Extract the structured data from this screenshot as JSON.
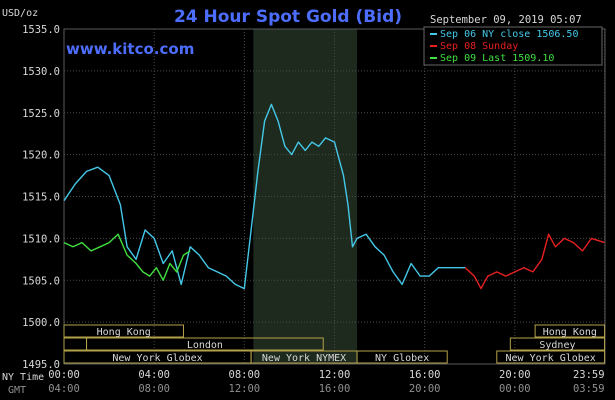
{
  "colors": {
    "background": "#000000",
    "title": "#4d6dff",
    "website": "#4d6dff",
    "axis_text": "#d8d8d8",
    "grid": "#4a4a4a",
    "session_shade": "#1e2a1e",
    "label_border": "#b4a24a",
    "label_text": "#d8d8d8"
  },
  "chart_data": {
    "type": "line",
    "title": "24 Hour Spot Gold (Bid)",
    "website": "www.kitco.com",
    "timestamp": "September 09, 2019 05:07",
    "ylabel": "USD/oz",
    "ylim": [
      1495.0,
      1535.0
    ],
    "y_ticks": [
      "1495.0",
      "1500.0",
      "1505.0",
      "1510.0",
      "1515.0",
      "1520.0",
      "1525.0",
      "1530.0",
      "1535.0"
    ],
    "y_tick_values": [
      1495,
      1500,
      1505,
      1510,
      1515,
      1520,
      1525,
      1530,
      1535
    ],
    "xlim": [
      0,
      24
    ],
    "x_ticks_ny": [
      "00:00",
      "04:00",
      "08:00",
      "12:00",
      "16:00",
      "20:00",
      "23:59"
    ],
    "x_ticks_gmt": [
      "04:00",
      "08:00",
      "12:00",
      "16:00",
      "20:00",
      "00:00",
      "03:59"
    ],
    "x_tick_values": [
      0,
      4,
      8,
      12,
      16,
      20,
      23.98
    ],
    "x_row_labels": [
      "NY Time",
      "GMT"
    ],
    "grid": true,
    "legend_position": "top-right",
    "highlight_range": [
      8.4,
      13.0
    ],
    "series": [
      {
        "name": "Sep 06 NY close 1506.50",
        "color": "#44c8e8",
        "x": [
          0,
          0.5,
          1,
          1.5,
          2,
          2.5,
          2.8,
          3.2,
          3.6,
          4,
          4.4,
          4.8,
          5.2,
          5.6,
          6,
          6.4,
          6.8,
          7.2,
          7.6,
          8,
          8.3,
          8.6,
          8.9,
          9.2,
          9.5,
          9.8,
          10.1,
          10.4,
          10.7,
          11,
          11.3,
          11.6,
          12,
          12.4,
          12.6,
          12.8,
          13,
          13.4,
          13.8,
          14.2,
          14.6,
          15,
          15.4,
          15.8,
          16.2,
          16.6,
          17,
          17.4,
          17.8
        ],
        "y": [
          1514.5,
          1516.5,
          1518.0,
          1518.5,
          1517.5,
          1514.0,
          1509.0,
          1507.5,
          1511.0,
          1510.0,
          1507.0,
          1508.5,
          1504.5,
          1509.0,
          1508.0,
          1506.5,
          1506.0,
          1505.5,
          1504.5,
          1504.0,
          1511.0,
          1518.0,
          1524.0,
          1526.0,
          1524.0,
          1521.0,
          1520.0,
          1521.5,
          1520.5,
          1521.5,
          1521.0,
          1522.0,
          1521.5,
          1517.5,
          1514.0,
          1509.0,
          1510.0,
          1510.5,
          1509.0,
          1508.0,
          1506.0,
          1504.5,
          1507.0,
          1505.5,
          1505.5,
          1506.5,
          1506.5,
          1506.5,
          1506.5
        ]
      },
      {
        "name": "Sep 08 Sunday",
        "color": "#e82020",
        "x": [
          17.8,
          18.2,
          18.5,
          18.8,
          19.2,
          19.6,
          20,
          20.4,
          20.8,
          21.2,
          21.5,
          21.8,
          22.2,
          22.6,
          23,
          23.4,
          23.98
        ],
        "y": [
          1506.5,
          1505.5,
          1504.0,
          1505.5,
          1506.0,
          1505.5,
          1506.0,
          1506.5,
          1506.0,
          1507.5,
          1510.5,
          1509.0,
          1510.0,
          1509.5,
          1508.5,
          1510.0,
          1509.5
        ]
      },
      {
        "name": "Sep 09 Last 1509.10",
        "color": "#40e040",
        "x": [
          0,
          0.4,
          0.8,
          1.2,
          1.6,
          2,
          2.4,
          2.8,
          3.2,
          3.5,
          3.8,
          4.1,
          4.4,
          4.7,
          5.0,
          5.3,
          5.6
        ],
        "y": [
          1509.5,
          1509.0,
          1509.5,
          1508.5,
          1509.0,
          1509.5,
          1510.5,
          1508.0,
          1507.0,
          1506.0,
          1505.5,
          1506.5,
          1505.0,
          1507.0,
          1506.0,
          1508.0,
          1508.5
        ]
      }
    ],
    "session_rows": [
      {
        "row": 0,
        "bars": [
          {
            "label": "Hong Kong",
            "start": 0,
            "end": 5.3
          },
          {
            "label": "Hong Kong",
            "start": 20.9,
            "end": 23.98
          }
        ]
      },
      {
        "row": 1,
        "bars": [
          {
            "label": "",
            "start": 0,
            "end": 1.0
          },
          {
            "label": "London",
            "start": 1.0,
            "end": 11.5
          },
          {
            "label": "Sydney",
            "start": 19.8,
            "end": 23.98
          }
        ]
      },
      {
        "row": 2,
        "bars": [
          {
            "label": "New York Globex",
            "start": 0,
            "end": 8.3
          },
          {
            "label": "New York NYMEX",
            "start": 8.3,
            "end": 13.0
          },
          {
            "label": "NY Globex",
            "start": 13.0,
            "end": 17.0
          },
          {
            "label": "New York Globex",
            "start": 19.2,
            "end": 23.98
          }
        ]
      }
    ]
  }
}
